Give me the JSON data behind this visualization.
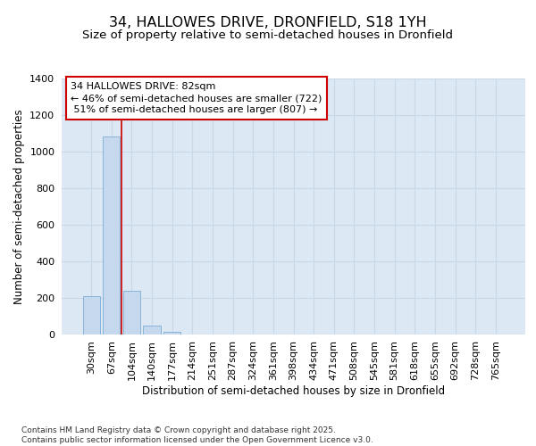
{
  "title1": "34, HALLOWES DRIVE, DRONFIELD, S18 1YH",
  "title2": "Size of property relative to semi-detached houses in Dronfield",
  "xlabel": "Distribution of semi-detached houses by size in Dronfield",
  "ylabel": "Number of semi-detached properties",
  "categories": [
    "30sqm",
    "67sqm",
    "104sqm",
    "140sqm",
    "177sqm",
    "214sqm",
    "251sqm",
    "287sqm",
    "324sqm",
    "361sqm",
    "398sqm",
    "434sqm",
    "471sqm",
    "508sqm",
    "545sqm",
    "581sqm",
    "618sqm",
    "655sqm",
    "692sqm",
    "728sqm",
    "765sqm"
  ],
  "values": [
    210,
    1080,
    240,
    50,
    15,
    0,
    0,
    0,
    0,
    0,
    0,
    0,
    0,
    0,
    0,
    0,
    0,
    0,
    0,
    0,
    0
  ],
  "bar_color": "#c5d8ee",
  "bar_edge_color": "#7aadd4",
  "grid_color": "#c8d8e8",
  "bg_color": "#dce8f4",
  "annotation_line1": "34 HALLOWES DRIVE: 82sqm",
  "annotation_line2": "← 46% of semi-detached houses are smaller (722)",
  "annotation_line3": " 51% of semi-detached houses are larger (807) →",
  "annotation_box_color": "#ffffff",
  "annotation_border_color": "#cc0000",
  "red_line_x": 1.5,
  "ylim": [
    0,
    1400
  ],
  "yticks": [
    0,
    200,
    400,
    600,
    800,
    1000,
    1200,
    1400
  ],
  "footer_text": "Contains HM Land Registry data © Crown copyright and database right 2025.\nContains public sector information licensed under the Open Government Licence v3.0.",
  "title_fontsize": 11.5,
  "subtitle_fontsize": 9.5,
  "axis_label_fontsize": 8.5,
  "tick_fontsize": 8,
  "annotation_fontsize": 8,
  "footer_fontsize": 6.5
}
